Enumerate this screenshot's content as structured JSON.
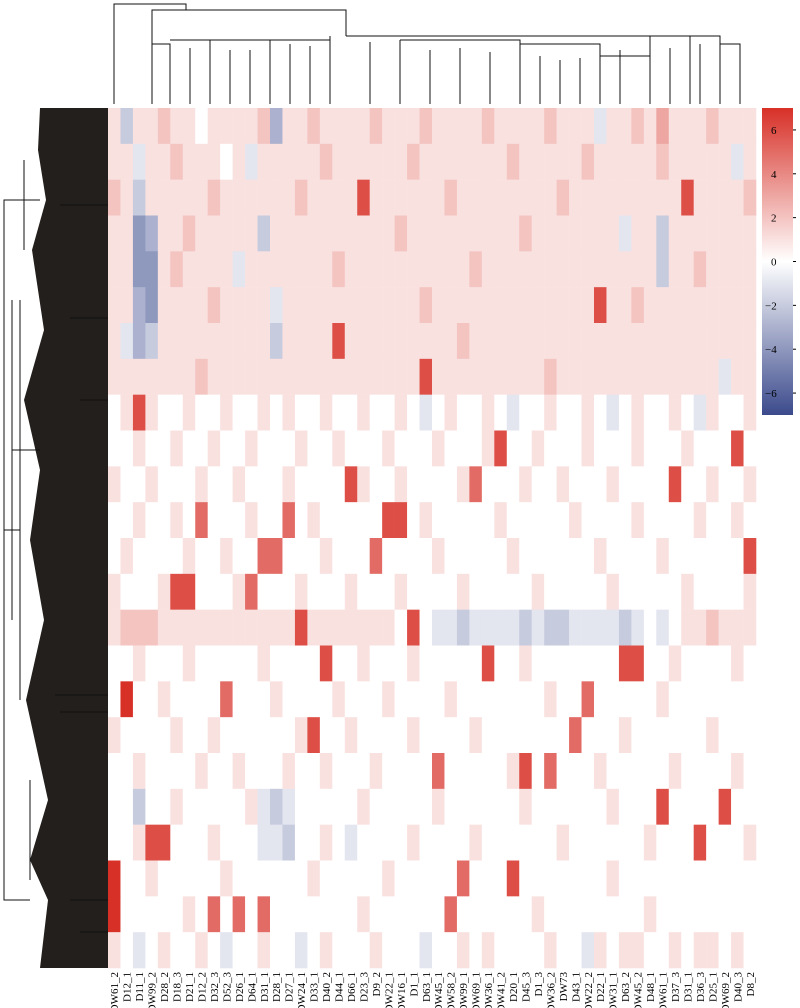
{
  "chart_data": {
    "type": "heatmap",
    "columns": [
      "DW61_2",
      "D12_1",
      "D11_1",
      "DW99_2",
      "D28_2",
      "D18_3",
      "D21_1",
      "D12_2",
      "D32_3",
      "D52_3",
      "D26_1",
      "D64_1",
      "D31_1",
      "D28_1",
      "D27_1",
      "DW24_1",
      "D33_1",
      "D40_2",
      "D44_1",
      "D66_1",
      "D23_3",
      "D9_2",
      "DW22_1",
      "DW16_1",
      "D1_1",
      "D63_1",
      "DW45_1",
      "DW58_2",
      "DW99_1",
      "DW69_1",
      "DW36_1",
      "DW41_2",
      "D20_1",
      "D45_3",
      "D1_3",
      "DW36_2",
      "DW73",
      "D43_1",
      "DW22_2",
      "D22_1",
      "DW31_1",
      "D63_2",
      "DW45_2",
      "D48_1",
      "DW61_1",
      "D37_3",
      "D31_1",
      "D36_3",
      "D25_1",
      "DW69_2",
      "D40_3",
      "D8_2"
    ],
    "colorscale": [
      "#3b4a8c",
      "#ffffff",
      "#d73027"
    ],
    "zlim": [
      -7,
      7
    ],
    "zticks": [
      {
        "value": -6,
        "label": "−6"
      },
      {
        "value": -4,
        "label": "−4"
      },
      {
        "value": -2,
        "label": "−2"
      },
      0,
      2,
      4,
      6
    ],
    "z": [
      [
        1,
        -2,
        1,
        1,
        2,
        1,
        1,
        0,
        1,
        1,
        1,
        1,
        2,
        -3,
        1,
        1,
        2,
        1,
        1,
        1,
        1,
        2,
        1,
        1,
        1,
        2,
        1,
        1,
        1,
        1,
        2,
        1,
        1,
        1,
        1,
        2,
        1,
        1,
        1,
        -1,
        1,
        1,
        2,
        1,
        3,
        1,
        1,
        1,
        2,
        1,
        1,
        1
      ],
      [
        1,
        1,
        -1,
        1,
        1,
        2,
        1,
        1,
        1,
        0,
        1,
        -1,
        1,
        1,
        1,
        1,
        1,
        2,
        1,
        1,
        1,
        1,
        1,
        1,
        2,
        1,
        1,
        1,
        1,
        1,
        1,
        1,
        2,
        1,
        1,
        1,
        1,
        1,
        2,
        1,
        1,
        1,
        1,
        1,
        2,
        1,
        1,
        1,
        1,
        1,
        -1,
        1
      ],
      [
        2,
        1,
        -2,
        1,
        1,
        1,
        1,
        1,
        2,
        1,
        1,
        1,
        1,
        1,
        1,
        2,
        1,
        1,
        1,
        1,
        6,
        1,
        1,
        1,
        1,
        1,
        1,
        2,
        1,
        1,
        1,
        1,
        1,
        1,
        1,
        1,
        2,
        1,
        1,
        1,
        1,
        1,
        1,
        1,
        1,
        1,
        6,
        1,
        1,
        1,
        1,
        2
      ],
      [
        1,
        1,
        -4,
        -3,
        1,
        1,
        2,
        1,
        1,
        1,
        1,
        1,
        -2,
        1,
        1,
        1,
        1,
        1,
        1,
        1,
        1,
        1,
        1,
        2,
        1,
        1,
        1,
        1,
        1,
        1,
        1,
        1,
        1,
        2,
        1,
        1,
        1,
        1,
        1,
        1,
        1,
        -1,
        1,
        1,
        -2,
        1,
        1,
        1,
        1,
        1,
        1,
        1
      ],
      [
        1,
        1,
        -4,
        -4,
        1,
        2,
        1,
        1,
        1,
        1,
        -1,
        1,
        1,
        1,
        1,
        1,
        1,
        1,
        2,
        1,
        1,
        1,
        1,
        1,
        1,
        1,
        1,
        1,
        1,
        2,
        1,
        1,
        1,
        1,
        1,
        1,
        1,
        1,
        1,
        1,
        1,
        1,
        1,
        1,
        -2,
        1,
        1,
        2,
        1,
        1,
        1,
        1
      ],
      [
        1,
        1,
        -3,
        -4,
        1,
        1,
        1,
        1,
        2,
        1,
        1,
        1,
        1,
        -1,
        1,
        1,
        1,
        1,
        1,
        1,
        1,
        1,
        1,
        1,
        1,
        2,
        1,
        1,
        1,
        1,
        1,
        1,
        1,
        1,
        1,
        1,
        1,
        1,
        1,
        6,
        1,
        1,
        2,
        1,
        1,
        1,
        1,
        1,
        1,
        1,
        1,
        1
      ],
      [
        1,
        -1,
        -3,
        -2,
        1,
        1,
        1,
        1,
        1,
        1,
        1,
        1,
        1,
        -2,
        1,
        1,
        1,
        1,
        6,
        1,
        1,
        1,
        1,
        1,
        1,
        1,
        1,
        1,
        2,
        1,
        1,
        1,
        1,
        1,
        1,
        1,
        1,
        1,
        1,
        1,
        1,
        1,
        1,
        1,
        1,
        1,
        1,
        1,
        1,
        1,
        1,
        1
      ],
      [
        1,
        1,
        1,
        1,
        1,
        1,
        1,
        2,
        1,
        1,
        1,
        1,
        1,
        1,
        1,
        1,
        1,
        1,
        1,
        1,
        1,
        1,
        1,
        1,
        1,
        6,
        1,
        1,
        1,
        1,
        1,
        1,
        1,
        1,
        1,
        2,
        1,
        1,
        1,
        1,
        1,
        1,
        1,
        1,
        1,
        1,
        1,
        1,
        1,
        -1,
        1,
        1
      ],
      [
        0,
        1,
        6,
        1,
        0,
        0,
        1,
        0,
        0,
        1,
        0,
        0,
        1,
        0,
        1,
        0,
        0,
        1,
        0,
        0,
        1,
        0,
        0,
        1,
        0,
        -1,
        0,
        1,
        0,
        0,
        1,
        0,
        -1,
        0,
        0,
        1,
        0,
        0,
        1,
        0,
        -1,
        0,
        1,
        0,
        0,
        1,
        0,
        -1,
        1,
        0,
        0,
        1
      ],
      [
        0,
        0,
        1,
        0,
        0,
        1,
        0,
        0,
        1,
        0,
        0,
        1,
        0,
        0,
        0,
        1,
        0,
        0,
        1,
        0,
        0,
        0,
        1,
        0,
        0,
        0,
        1,
        0,
        0,
        0,
        1,
        6,
        0,
        0,
        1,
        0,
        0,
        0,
        1,
        0,
        0,
        0,
        1,
        0,
        0,
        0,
        1,
        0,
        0,
        0,
        6,
        0
      ],
      [
        1,
        0,
        0,
        1,
        0,
        0,
        0,
        1,
        0,
        0,
        1,
        0,
        0,
        0,
        1,
        0,
        0,
        0,
        0,
        6,
        1,
        0,
        0,
        1,
        0,
        0,
        0,
        0,
        1,
        5,
        0,
        0,
        0,
        1,
        0,
        0,
        1,
        0,
        0,
        0,
        1,
        0,
        0,
        0,
        0,
        6,
        0,
        0,
        1,
        0,
        0,
        1
      ],
      [
        0,
        0,
        1,
        0,
        0,
        1,
        0,
        5,
        0,
        0,
        0,
        1,
        0,
        0,
        5,
        0,
        1,
        0,
        0,
        0,
        0,
        0,
        6,
        6,
        0,
        1,
        0,
        0,
        0,
        0,
        0,
        1,
        0,
        0,
        0,
        0,
        0,
        1,
        0,
        0,
        0,
        0,
        1,
        0,
        0,
        0,
        0,
        1,
        0,
        0,
        1,
        0
      ],
      [
        0,
        1,
        0,
        0,
        0,
        0,
        1,
        0,
        0,
        1,
        0,
        0,
        5,
        5,
        0,
        0,
        0,
        1,
        0,
        0,
        0,
        5,
        0,
        0,
        0,
        0,
        1,
        0,
        0,
        0,
        0,
        0,
        1,
        0,
        0,
        0,
        0,
        0,
        0,
        1,
        0,
        0,
        0,
        0,
        1,
        0,
        0,
        0,
        0,
        0,
        0,
        6
      ],
      [
        1,
        0,
        0,
        0,
        1,
        6,
        6,
        0,
        0,
        0,
        1,
        5,
        0,
        0,
        0,
        1,
        0,
        0,
        0,
        1,
        0,
        0,
        0,
        1,
        0,
        0,
        0,
        0,
        1,
        0,
        0,
        0,
        0,
        0,
        1,
        0,
        0,
        0,
        0,
        0,
        1,
        0,
        0,
        0,
        0,
        0,
        1,
        0,
        0,
        0,
        0,
        1
      ],
      [
        1,
        2,
        2,
        2,
        1,
        1,
        1,
        1,
        1,
        1,
        1,
        1,
        1,
        1,
        1,
        6,
        1,
        1,
        1,
        1,
        1,
        1,
        1,
        0,
        6,
        0,
        -1,
        -1,
        -2,
        -1,
        -1,
        -1,
        -1,
        -2,
        -1,
        -2,
        -2,
        -1,
        -1,
        -1,
        -1,
        -2,
        -1,
        0,
        -1,
        0,
        1,
        1,
        2,
        1,
        1,
        1
      ],
      [
        0,
        0,
        1,
        0,
        0,
        0,
        1,
        0,
        0,
        0,
        0,
        0,
        1,
        0,
        0,
        0,
        0,
        6,
        0,
        0,
        1,
        0,
        0,
        0,
        1,
        0,
        0,
        0,
        0,
        0,
        6,
        0,
        0,
        1,
        0,
        0,
        0,
        0,
        0,
        0,
        0,
        6,
        6,
        0,
        0,
        1,
        0,
        0,
        0,
        0,
        1,
        0
      ],
      [
        0,
        7,
        0,
        0,
        1,
        0,
        0,
        0,
        0,
        5,
        0,
        0,
        0,
        1,
        0,
        0,
        0,
        0,
        1,
        0,
        0,
        0,
        1,
        0,
        0,
        0,
        0,
        1,
        0,
        0,
        0,
        0,
        0,
        0,
        0,
        1,
        0,
        0,
        5,
        0,
        0,
        0,
        0,
        0,
        1,
        0,
        0,
        0,
        0,
        0,
        0,
        0
      ],
      [
        1,
        0,
        0,
        0,
        0,
        1,
        0,
        0,
        1,
        0,
        0,
        0,
        0,
        0,
        0,
        1,
        6,
        0,
        0,
        1,
        0,
        0,
        0,
        0,
        1,
        0,
        0,
        0,
        0,
        1,
        0,
        0,
        0,
        0,
        0,
        0,
        0,
        5,
        0,
        0,
        0,
        1,
        0,
        0,
        0,
        0,
        0,
        0,
        1,
        0,
        0,
        0
      ],
      [
        0,
        0,
        1,
        0,
        0,
        0,
        0,
        1,
        0,
        0,
        1,
        0,
        0,
        0,
        1,
        0,
        0,
        1,
        0,
        0,
        0,
        1,
        0,
        0,
        0,
        0,
        5,
        0,
        0,
        0,
        0,
        0,
        1,
        6,
        0,
        5,
        0,
        0,
        0,
        1,
        0,
        0,
        0,
        0,
        0,
        1,
        0,
        0,
        0,
        0,
        1,
        0
      ],
      [
        0,
        0,
        -2,
        0,
        0,
        1,
        0,
        0,
        0,
        0,
        0,
        1,
        -1,
        -2,
        -1,
        0,
        0,
        0,
        0,
        0,
        1,
        0,
        0,
        0,
        0,
        0,
        1,
        0,
        0,
        0,
        0,
        0,
        0,
        1,
        0,
        0,
        0,
        0,
        0,
        0,
        1,
        0,
        0,
        0,
        6,
        0,
        0,
        0,
        0,
        6,
        0,
        0
      ],
      [
        0,
        0,
        1,
        6,
        6,
        0,
        0,
        0,
        1,
        0,
        0,
        0,
        -1,
        -1,
        -2,
        0,
        0,
        1,
        0,
        -1,
        0,
        0,
        0,
        0,
        1,
        0,
        0,
        0,
        0,
        1,
        0,
        0,
        0,
        0,
        0,
        0,
        1,
        0,
        0,
        0,
        0,
        0,
        0,
        1,
        0,
        0,
        0,
        6,
        0,
        0,
        0,
        1
      ],
      [
        7,
        0,
        0,
        1,
        0,
        0,
        0,
        0,
        0,
        1,
        0,
        0,
        0,
        0,
        0,
        0,
        1,
        0,
        0,
        0,
        0,
        0,
        1,
        0,
        0,
        0,
        0,
        0,
        5,
        0,
        0,
        0,
        6,
        0,
        0,
        0,
        0,
        0,
        0,
        0,
        1,
        0,
        0,
        0,
        0,
        0,
        0,
        0,
        0,
        0,
        0,
        0
      ],
      [
        7,
        0,
        0,
        0,
        0,
        0,
        1,
        0,
        5,
        0,
        5,
        0,
        5,
        0,
        0,
        0,
        0,
        0,
        0,
        0,
        1,
        0,
        0,
        0,
        0,
        0,
        0,
        5,
        0,
        0,
        0,
        0,
        0,
        0,
        1,
        0,
        0,
        0,
        0,
        0,
        0,
        0,
        0,
        1,
        0,
        0,
        0,
        0,
        0,
        0,
        0,
        0
      ],
      [
        1,
        0,
        -1,
        0,
        1,
        0,
        0,
        1,
        0,
        -1,
        0,
        0,
        1,
        0,
        0,
        -1,
        0,
        1,
        0,
        0,
        0,
        1,
        0,
        0,
        0,
        -1,
        0,
        0,
        1,
        0,
        1,
        0,
        0,
        0,
        0,
        1,
        0,
        0,
        -1,
        1,
        0,
        1,
        1,
        0,
        0,
        1,
        0,
        1,
        1,
        0,
        1,
        0
      ]
    ]
  }
}
